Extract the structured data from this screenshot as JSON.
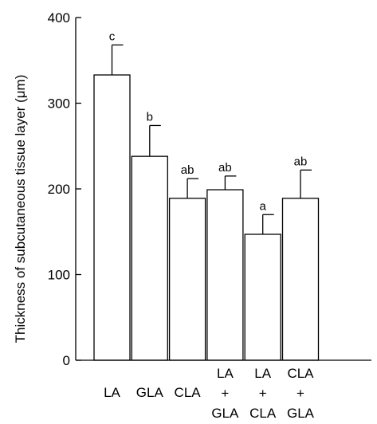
{
  "chart_data": {
    "type": "bar",
    "categories": [
      [
        "LA"
      ],
      [
        "GLA"
      ],
      [
        "CLA"
      ],
      [
        "LA",
        "+",
        "GLA"
      ],
      [
        "LA",
        "+",
        "CLA"
      ],
      [
        "CLA",
        "+",
        "GLA"
      ]
    ],
    "values": [
      333,
      238,
      189,
      199,
      147,
      189
    ],
    "errors": [
      35,
      36,
      23,
      16,
      23,
      33
    ],
    "significance": [
      "c",
      "b",
      "ab",
      "ab",
      "a",
      "ab"
    ],
    "ylabel": "Thickness of subcutaneous tissue layer (μm)",
    "ylim": [
      0,
      400
    ],
    "yticks": [
      0,
      100,
      200,
      300,
      400
    ],
    "grid": false,
    "colors": {
      "bar_fill": "#ffffff",
      "stroke": "#000000"
    }
  }
}
